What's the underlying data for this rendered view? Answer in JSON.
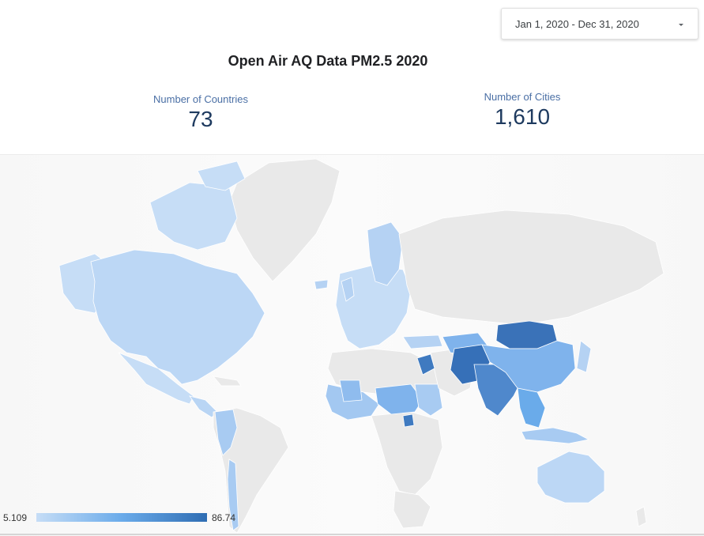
{
  "date_range": {
    "label": "Jan 1, 2020 - Dec 31, 2020",
    "icon": "caret-down-icon"
  },
  "title": "Open Air AQ Data PM2.5  2020",
  "kpis": {
    "countries": {
      "label": "Number of Countries",
      "value": "73"
    },
    "cities": {
      "label": "Number of Cities",
      "value": "1,610"
    }
  },
  "legend": {
    "min": "5.109",
    "max": "86.74",
    "colors": {
      "low": "#c6ddf6",
      "mid": "#6aabea",
      "high": "#2f6db3"
    }
  },
  "map_colors": {
    "no_data": "#e9e9e9",
    "border": "#ffffff"
  }
}
